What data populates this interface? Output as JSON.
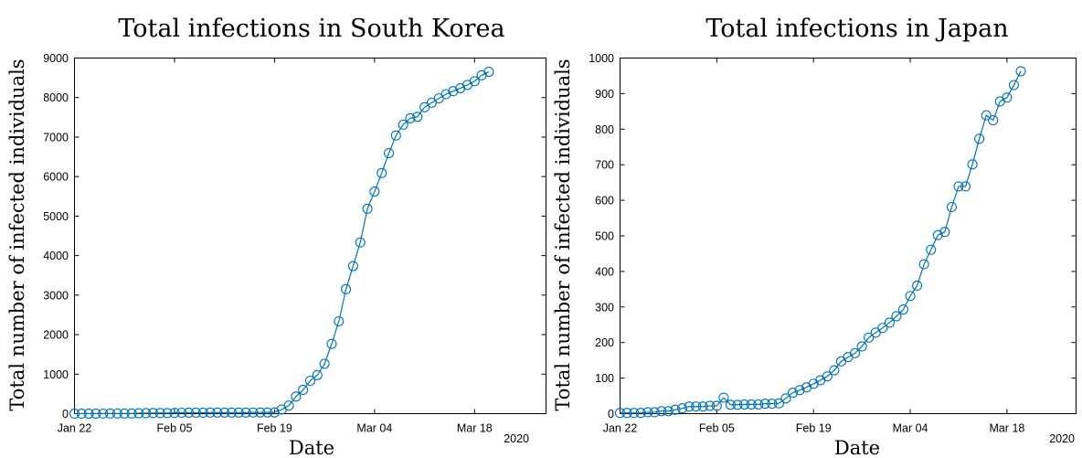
{
  "chart_data": [
    {
      "type": "line",
      "title": "Total infections in South Korea",
      "xlabel": "Date",
      "ylabel": "Total number of infected individuals",
      "year_label": "2020",
      "x_tick_labels": [
        "Jan 22",
        "Feb 05",
        "Feb 19",
        "Mar 04",
        "Mar 18"
      ],
      "y_ticks": [
        0,
        1000,
        2000,
        3000,
        4000,
        5000,
        6000,
        7000,
        8000,
        9000
      ],
      "ylim": [
        0,
        9000
      ],
      "xlim": [
        "2020-01-22",
        "2020-03-28"
      ],
      "grid": false,
      "color": "#0072BD",
      "series": [
        {
          "x": [
            "2020-01-22",
            "2020-01-23",
            "2020-01-24",
            "2020-01-25",
            "2020-01-26",
            "2020-01-27",
            "2020-01-28",
            "2020-01-29",
            "2020-01-30",
            "2020-01-31",
            "2020-02-01",
            "2020-02-02",
            "2020-02-03",
            "2020-02-04",
            "2020-02-05",
            "2020-02-06",
            "2020-02-07",
            "2020-02-08",
            "2020-02-09",
            "2020-02-10",
            "2020-02-11",
            "2020-02-12",
            "2020-02-13",
            "2020-02-14",
            "2020-02-15",
            "2020-02-16",
            "2020-02-17",
            "2020-02-18",
            "2020-02-19",
            "2020-02-20",
            "2020-02-21",
            "2020-02-22",
            "2020-02-23",
            "2020-02-24",
            "2020-02-25",
            "2020-02-26",
            "2020-02-27",
            "2020-02-28",
            "2020-02-29",
            "2020-03-01",
            "2020-03-02",
            "2020-03-03",
            "2020-03-04",
            "2020-03-05",
            "2020-03-06",
            "2020-03-07",
            "2020-03-08",
            "2020-03-09",
            "2020-03-10",
            "2020-03-11",
            "2020-03-12",
            "2020-03-13",
            "2020-03-14",
            "2020-03-15",
            "2020-03-16",
            "2020-03-17",
            "2020-03-18",
            "2020-03-19",
            "2020-03-20"
          ],
          "values": [
            1,
            1,
            2,
            2,
            3,
            4,
            4,
            4,
            4,
            11,
            12,
            15,
            15,
            16,
            19,
            23,
            24,
            24,
            25,
            27,
            28,
            28,
            28,
            28,
            28,
            29,
            30,
            31,
            31,
            104,
            204,
            433,
            602,
            833,
            977,
            1261,
            1766,
            2337,
            3150,
            3736,
            4335,
            5186,
            5621,
            6088,
            6593,
            7041,
            7314,
            7478,
            7513,
            7755,
            7869,
            7979,
            8086,
            8162,
            8236,
            8320,
            8413,
            8565,
            8652
          ]
        }
      ]
    },
    {
      "type": "line",
      "title": "Total infections in Japan",
      "xlabel": "Date",
      "ylabel": "Total number of infected individuals",
      "year_label": "2020",
      "x_tick_labels": [
        "Jan 22",
        "Feb 05",
        "Feb 19",
        "Mar 04",
        "Mar 18"
      ],
      "y_ticks": [
        0,
        100,
        200,
        300,
        400,
        500,
        600,
        700,
        800,
        900,
        1000
      ],
      "ylim": [
        0,
        1000
      ],
      "xlim": [
        "2020-01-22",
        "2020-03-28"
      ],
      "grid": false,
      "color": "#0072BD",
      "series": [
        {
          "x": [
            "2020-01-22",
            "2020-01-23",
            "2020-01-24",
            "2020-01-25",
            "2020-01-26",
            "2020-01-27",
            "2020-01-28",
            "2020-01-29",
            "2020-01-30",
            "2020-01-31",
            "2020-02-01",
            "2020-02-02",
            "2020-02-03",
            "2020-02-04",
            "2020-02-05",
            "2020-02-06",
            "2020-02-07",
            "2020-02-08",
            "2020-02-09",
            "2020-02-10",
            "2020-02-11",
            "2020-02-12",
            "2020-02-13",
            "2020-02-14",
            "2020-02-15",
            "2020-02-16",
            "2020-02-17",
            "2020-02-18",
            "2020-02-19",
            "2020-02-20",
            "2020-02-21",
            "2020-02-22",
            "2020-02-23",
            "2020-02-24",
            "2020-02-25",
            "2020-02-26",
            "2020-02-27",
            "2020-02-28",
            "2020-02-29",
            "2020-03-01",
            "2020-03-02",
            "2020-03-03",
            "2020-03-04",
            "2020-03-05",
            "2020-03-06",
            "2020-03-07",
            "2020-03-08",
            "2020-03-09",
            "2020-03-10",
            "2020-03-11",
            "2020-03-12",
            "2020-03-13",
            "2020-03-14",
            "2020-03-15",
            "2020-03-16",
            "2020-03-17",
            "2020-03-18",
            "2020-03-19",
            "2020-03-20"
          ],
          "values": [
            2,
            2,
            2,
            2,
            4,
            4,
            7,
            7,
            11,
            15,
            20,
            20,
            20,
            22,
            22,
            45,
            25,
            25,
            26,
            26,
            26,
            28,
            28,
            29,
            43,
            59,
            66,
            74,
            84,
            94,
            105,
            122,
            147,
            159,
            170,
            189,
            214,
            228,
            241,
            256,
            274,
            293,
            331,
            360,
            420,
            461,
            502,
            511,
            581,
            639,
            639,
            701,
            773,
            839,
            825,
            878,
            889,
            924,
            963
          ]
        }
      ]
    }
  ]
}
